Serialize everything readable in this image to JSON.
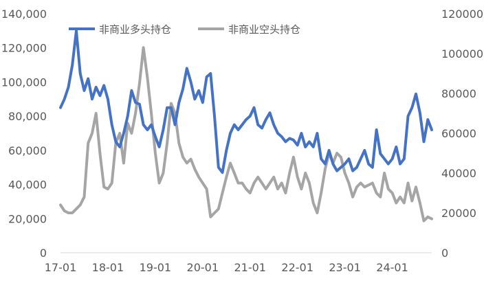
{
  "chart_data": {
    "type": "line",
    "title": "",
    "xlabel": "",
    "ylabel": "",
    "x_ticks": [
      "17-01",
      "18-01",
      "19-01",
      "20-01",
      "21-01",
      "22-01",
      "23-01",
      "24-01"
    ],
    "y_left": {
      "min": 0,
      "max": 140000,
      "ticks": [
        "0",
        "20,000",
        "40,000",
        "60,000",
        "80,000",
        "100,000",
        "120,000",
        "140,000"
      ]
    },
    "y_right": {
      "min": 0,
      "max": 120000,
      "ticks": [
        "0",
        "20000",
        "40000",
        "60000",
        "80000",
        "100000",
        "120000"
      ]
    },
    "legend": {
      "position": "top-left"
    },
    "grid": false,
    "x_start": "2017-01",
    "x_end": "2024-11",
    "series": [
      {
        "name": "非商业多头持仓",
        "axis": "left",
        "color": "#4472C4",
        "points": [
          [
            "2017-01",
            85000
          ],
          [
            "2017-02",
            90000
          ],
          [
            "2017-03",
            97000
          ],
          [
            "2017-04",
            110000
          ],
          [
            "2017-05",
            130000
          ],
          [
            "2017-06",
            105000
          ],
          [
            "2017-07",
            95000
          ],
          [
            "2017-08",
            102000
          ],
          [
            "2017-09",
            90000
          ],
          [
            "2017-10",
            97000
          ],
          [
            "2017-11",
            92000
          ],
          [
            "2017-12",
            98000
          ],
          [
            "2018-01",
            90000
          ],
          [
            "2018-02",
            75000
          ],
          [
            "2018-03",
            65000
          ],
          [
            "2018-04",
            62000
          ],
          [
            "2018-05",
            70000
          ],
          [
            "2018-06",
            80000
          ],
          [
            "2018-07",
            95000
          ],
          [
            "2018-08",
            88000
          ],
          [
            "2018-09",
            87000
          ],
          [
            "2018-10",
            75000
          ],
          [
            "2018-11",
            72000
          ],
          [
            "2018-12",
            75000
          ],
          [
            "2019-01",
            68000
          ],
          [
            "2019-02",
            62000
          ],
          [
            "2019-03",
            72000
          ],
          [
            "2019-04",
            85000
          ],
          [
            "2019-05",
            85000
          ],
          [
            "2019-06",
            75000
          ],
          [
            "2019-07",
            88000
          ],
          [
            "2019-08",
            96000
          ],
          [
            "2019-09",
            108000
          ],
          [
            "2019-10",
            100000
          ],
          [
            "2019-11",
            90000
          ],
          [
            "2019-12",
            95000
          ],
          [
            "2020-01",
            88000
          ],
          [
            "2020-02",
            103000
          ],
          [
            "2020-03",
            105000
          ],
          [
            "2020-04",
            80000
          ],
          [
            "2020-05",
            50000
          ],
          [
            "2020-06",
            47000
          ],
          [
            "2020-07",
            60000
          ],
          [
            "2020-08",
            70000
          ],
          [
            "2020-09",
            75000
          ],
          [
            "2020-10",
            72000
          ],
          [
            "2020-11",
            75000
          ],
          [
            "2020-12",
            78000
          ],
          [
            "2021-01",
            80000
          ],
          [
            "2021-02",
            85000
          ],
          [
            "2021-03",
            75000
          ],
          [
            "2021-04",
            73000
          ],
          [
            "2021-05",
            78000
          ],
          [
            "2021-06",
            82000
          ],
          [
            "2021-07",
            75000
          ],
          [
            "2021-08",
            70000
          ],
          [
            "2021-09",
            68000
          ],
          [
            "2021-10",
            65000
          ],
          [
            "2021-11",
            67000
          ],
          [
            "2021-12",
            66000
          ],
          [
            "2022-01",
            63000
          ],
          [
            "2022-02",
            70000
          ],
          [
            "2022-03",
            62000
          ],
          [
            "2022-04",
            65000
          ],
          [
            "2022-05",
            62000
          ],
          [
            "2022-06",
            70000
          ],
          [
            "2022-07",
            55000
          ],
          [
            "2022-08",
            52000
          ],
          [
            "2022-09",
            60000
          ],
          [
            "2022-10",
            52000
          ],
          [
            "2022-11",
            48000
          ],
          [
            "2022-12",
            50000
          ],
          [
            "2023-01",
            52000
          ],
          [
            "2023-02",
            55000
          ],
          [
            "2023-03",
            48000
          ],
          [
            "2023-04",
            50000
          ],
          [
            "2023-05",
            55000
          ],
          [
            "2023-06",
            60000
          ],
          [
            "2023-07",
            52000
          ],
          [
            "2023-08",
            50000
          ],
          [
            "2023-09",
            72000
          ],
          [
            "2023-10",
            58000
          ],
          [
            "2023-11",
            55000
          ],
          [
            "2023-12",
            52000
          ],
          [
            "2024-01",
            55000
          ],
          [
            "2024-02",
            62000
          ],
          [
            "2024-03",
            52000
          ],
          [
            "2024-04",
            55000
          ],
          [
            "2024-05",
            80000
          ],
          [
            "2024-06",
            85000
          ],
          [
            "2024-07",
            93000
          ],
          [
            "2024-08",
            82000
          ],
          [
            "2024-09",
            65000
          ],
          [
            "2024-10",
            78000
          ],
          [
            "2024-11",
            72000
          ]
        ]
      },
      {
        "name": "非商业空头持仓",
        "axis": "right",
        "color": "#A5A5A5",
        "points": [
          [
            "2017-01",
            24000
          ],
          [
            "2017-02",
            21000
          ],
          [
            "2017-03",
            20000
          ],
          [
            "2017-04",
            20000
          ],
          [
            "2017-05",
            22000
          ],
          [
            "2017-06",
            24000
          ],
          [
            "2017-07",
            28000
          ],
          [
            "2017-08",
            55000
          ],
          [
            "2017-09",
            60000
          ],
          [
            "2017-10",
            70000
          ],
          [
            "2017-11",
            50000
          ],
          [
            "2017-12",
            33000
          ],
          [
            "2018-01",
            32000
          ],
          [
            "2018-02",
            35000
          ],
          [
            "2018-03",
            55000
          ],
          [
            "2018-04",
            60000
          ],
          [
            "2018-05",
            45000
          ],
          [
            "2018-06",
            65000
          ],
          [
            "2018-07",
            60000
          ],
          [
            "2018-08",
            70000
          ],
          [
            "2018-09",
            85000
          ],
          [
            "2018-10",
            103000
          ],
          [
            "2018-11",
            88000
          ],
          [
            "2018-12",
            70000
          ],
          [
            "2019-01",
            50000
          ],
          [
            "2019-02",
            35000
          ],
          [
            "2019-03",
            40000
          ],
          [
            "2019-04",
            55000
          ],
          [
            "2019-05",
            75000
          ],
          [
            "2019-06",
            70000
          ],
          [
            "2019-07",
            55000
          ],
          [
            "2019-08",
            48000
          ],
          [
            "2019-09",
            45000
          ],
          [
            "2019-10",
            47000
          ],
          [
            "2019-11",
            42000
          ],
          [
            "2019-12",
            38000
          ],
          [
            "2020-01",
            35000
          ],
          [
            "2020-02",
            32000
          ],
          [
            "2020-03",
            18000
          ],
          [
            "2020-04",
            20000
          ],
          [
            "2020-05",
            22000
          ],
          [
            "2020-06",
            30000
          ],
          [
            "2020-07",
            38000
          ],
          [
            "2020-08",
            45000
          ],
          [
            "2020-09",
            40000
          ],
          [
            "2020-10",
            35000
          ],
          [
            "2020-11",
            35000
          ],
          [
            "2020-12",
            32000
          ],
          [
            "2021-01",
            30000
          ],
          [
            "2021-02",
            35000
          ],
          [
            "2021-03",
            38000
          ],
          [
            "2021-04",
            35000
          ],
          [
            "2021-05",
            32000
          ],
          [
            "2021-06",
            35000
          ],
          [
            "2021-07",
            38000
          ],
          [
            "2021-08",
            32000
          ],
          [
            "2021-09",
            35000
          ],
          [
            "2021-10",
            30000
          ],
          [
            "2021-11",
            40000
          ],
          [
            "2021-12",
            48000
          ],
          [
            "2022-01",
            38000
          ],
          [
            "2022-02",
            32000
          ],
          [
            "2022-03",
            40000
          ],
          [
            "2022-04",
            35000
          ],
          [
            "2022-05",
            25000
          ],
          [
            "2022-06",
            20000
          ],
          [
            "2022-07",
            30000
          ],
          [
            "2022-08",
            42000
          ],
          [
            "2022-09",
            50000
          ],
          [
            "2022-10",
            45000
          ],
          [
            "2022-11",
            50000
          ],
          [
            "2022-12",
            48000
          ],
          [
            "2023-01",
            40000
          ],
          [
            "2023-02",
            35000
          ],
          [
            "2023-03",
            28000
          ],
          [
            "2023-04",
            33000
          ],
          [
            "2023-05",
            35000
          ],
          [
            "2023-06",
            33000
          ],
          [
            "2023-07",
            34000
          ],
          [
            "2023-08",
            35000
          ],
          [
            "2023-09",
            30000
          ],
          [
            "2023-10",
            28000
          ],
          [
            "2023-11",
            40000
          ],
          [
            "2023-12",
            32000
          ],
          [
            "2024-01",
            30000
          ],
          [
            "2024-02",
            25000
          ],
          [
            "2024-03",
            28000
          ],
          [
            "2024-04",
            25000
          ],
          [
            "2024-05",
            35000
          ],
          [
            "2024-06",
            26000
          ],
          [
            "2024-07",
            33000
          ],
          [
            "2024-08",
            25000
          ],
          [
            "2024-09",
            16000
          ],
          [
            "2024-10",
            18000
          ],
          [
            "2024-11",
            17000
          ]
        ]
      }
    ]
  }
}
